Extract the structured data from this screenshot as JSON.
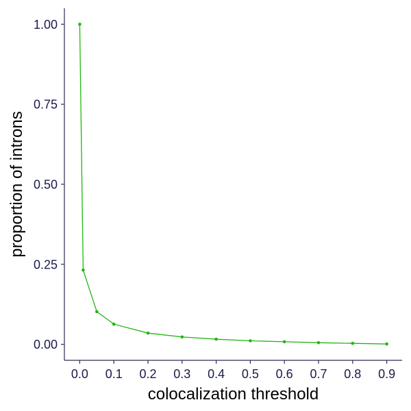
{
  "chart_data": {
    "type": "line",
    "title": "",
    "xlabel": "colocalization threshold",
    "ylabel": "proportion of introns",
    "xlim": [
      -0.045,
      0.945
    ],
    "ylim": [
      -0.05,
      1.05
    ],
    "x_ticks": [
      0.0,
      0.1,
      0.2,
      0.3,
      0.4,
      0.5,
      0.6,
      0.7,
      0.8,
      0.9
    ],
    "x_tick_labels": [
      "0.0",
      "0.1",
      "0.2",
      "0.3",
      "0.4",
      "0.5",
      "0.6",
      "0.7",
      "0.8",
      "0.9"
    ],
    "y_ticks": [
      0.0,
      0.25,
      0.5,
      0.75,
      1.0
    ],
    "y_tick_labels": [
      "0.00",
      "0.25",
      "0.50",
      "0.75",
      "1.00"
    ],
    "grid": false,
    "legend": "none",
    "series": [
      {
        "color": "#22b514",
        "x": [
          0.0,
          0.01,
          0.05,
          0.1,
          0.2,
          0.3,
          0.4,
          0.5,
          0.6,
          0.7,
          0.8,
          0.9
        ],
        "y": [
          1.0,
          0.232,
          0.102,
          0.063,
          0.035,
          0.023,
          0.016,
          0.011,
          0.008,
          0.005,
          0.003,
          0.001
        ]
      }
    ]
  }
}
